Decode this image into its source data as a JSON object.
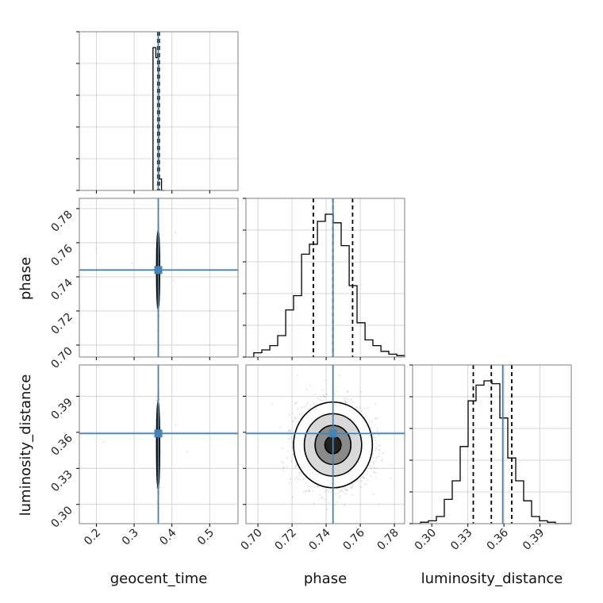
{
  "chart_data": {
    "type": "corner",
    "parameters": [
      "geocent_time",
      "phase",
      "luminosity_distance"
    ],
    "truths": {
      "geocent_time": 0.364,
      "phase": 0.744,
      "luminosity_distance": 0.359
    },
    "quantiles": {
      "geocent_time": [
        0.3625,
        0.3645,
        0.3665
      ],
      "phase": [
        0.7325,
        0.744,
        0.7555
      ],
      "luminosity_distance": [
        0.3345,
        0.3495,
        0.3665
      ]
    },
    "ranges": {
      "geocent_time": [
        0.155,
        0.575
      ],
      "phase": [
        0.693,
        0.786
      ],
      "luminosity_distance": [
        0.284,
        0.416
      ]
    },
    "ticks": {
      "geocent_time": [
        "0.2",
        "0.3",
        "0.4",
        "0.5"
      ],
      "phase": [
        "0.70",
        "0.72",
        "0.74",
        "0.76",
        "0.78"
      ],
      "luminosity_distance": [
        "0.30",
        "0.33",
        "0.36",
        "0.39"
      ]
    },
    "histograms": {
      "geocent_time": {
        "edges": [
          0.35,
          0.3575,
          0.365,
          0.3725,
          0.38
        ],
        "counts": [
          1.0,
          0.93,
          0.08,
          0.0
        ]
      },
      "phase": {
        "edges": [
          0.693,
          0.6976,
          0.7023,
          0.707,
          0.7116,
          0.7163,
          0.7209,
          0.7256,
          0.7302,
          0.7349,
          0.7395,
          0.7442,
          0.7488,
          0.7535,
          0.7581,
          0.7628,
          0.7674,
          0.7721,
          0.7767,
          0.7814,
          0.786
        ],
        "counts": [
          0.0,
          0.03,
          0.05,
          0.08,
          0.15,
          0.33,
          0.43,
          0.72,
          0.79,
          0.95,
          1.0,
          0.94,
          0.78,
          0.5,
          0.24,
          0.12,
          0.08,
          0.04,
          0.02,
          0.01
        ]
      },
      "luminosity_distance": {
        "edges": [
          0.284,
          0.2906,
          0.2972,
          0.3038,
          0.3104,
          0.317,
          0.3236,
          0.3302,
          0.3368,
          0.3434,
          0.35,
          0.3566,
          0.3632,
          0.3698,
          0.3764,
          0.383,
          0.3896,
          0.3962,
          0.4028,
          0.4094,
          0.416
        ],
        "counts": [
          0.0,
          0.01,
          0.02,
          0.05,
          0.17,
          0.3,
          0.54,
          0.86,
          0.97,
          1.0,
          0.98,
          0.74,
          0.46,
          0.3,
          0.16,
          0.05,
          0.02,
          0.01,
          0.0,
          0.0
        ]
      }
    },
    "grid": true,
    "colors": {
      "truth": "#4682b4",
      "contour": "#000000",
      "points": "#9a9a9a",
      "frame": "#7f7f7f",
      "grid": "#cccccc"
    }
  }
}
